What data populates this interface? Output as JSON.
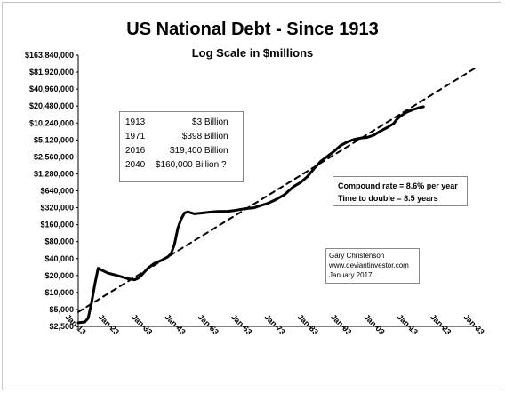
{
  "chart_data": {
    "type": "line",
    "title": "US National Debt - Since 1913",
    "subtitle": "Log Scale in $millions",
    "y_scale": "log2",
    "ylim": [
      2500,
      163840000
    ],
    "y_ticks": [
      "$163,840,000",
      "$81,920,000",
      "$40,960,000",
      "$20,480,000",
      "$10,240,000",
      "$5,120,000",
      "$2,560,000",
      "$1,280,000",
      "$640,000",
      "$320,000",
      "$160,000",
      "$80,000",
      "$40,000",
      "$20,000",
      "$10,000",
      "$5,000",
      "$2,500"
    ],
    "x_ticks": [
      "Jan-13",
      "Jan-23",
      "Jan-33",
      "Jan-43",
      "Jan-53",
      "Jan-63",
      "Jan-73",
      "Jan-83",
      "Jan-93",
      "Jan-03",
      "Jan-13",
      "Jan-23",
      "Jan-33"
    ],
    "xlim": [
      1913,
      2033
    ],
    "series": [
      {
        "style": "solid",
        "x": [
          1913,
          1915,
          1916,
          1917,
          1918,
          1919,
          1920,
          1922,
          1924,
          1926,
          1928,
          1930,
          1931,
          1932,
          1934,
          1936,
          1938,
          1940,
          1941,
          1942,
          1943,
          1944,
          1945,
          1946,
          1948,
          1950,
          1953,
          1955,
          1958,
          1960,
          1963,
          1966,
          1968,
          1970,
          1972,
          1975,
          1978,
          1980,
          1982,
          1984,
          1986,
          1988,
          1990,
          1992,
          1994,
          1996,
          1998,
          2000,
          2002,
          2004,
          2006,
          2008,
          2009,
          2010,
          2012,
          2014,
          2016,
          2017
        ],
        "values": [
          2900,
          3000,
          3500,
          6500,
          14000,
          27000,
          25000,
          22000,
          20500,
          19000,
          17500,
          16800,
          17800,
          20000,
          27000,
          33000,
          37000,
          43000,
          49000,
          72000,
          137000,
          200000,
          258000,
          270000,
          250000,
          257000,
          268000,
          275000,
          276000,
          286000,
          306000,
          320000,
          350000,
          380000,
          430000,
          540000,
          770000,
          900000,
          1140000,
          1570000,
          2120000,
          2600000,
          3200000,
          4060000,
          4690000,
          5200000,
          5500000,
          5670000,
          6200000,
          7350000,
          8450000,
          9990000,
          11900000,
          13500000,
          16000000,
          17800000,
          19400000,
          19900000
        ]
      },
      {
        "style": "dashed",
        "x": [
          1913,
          2033
        ],
        "values": [
          4500,
          100000000
        ]
      }
    ]
  },
  "table": {
    "rows": [
      {
        "year": "1913",
        "value": "$3 Billion"
      },
      {
        "year": "1971",
        "value": "$398 Billion"
      },
      {
        "year": "2016",
        "value": "$19,400 Billion"
      },
      {
        "year": "2040",
        "value": "$160,000 Billion ?"
      }
    ]
  },
  "rate_box": {
    "line1": "Compound rate = 8.6% per year",
    "line2": "Time to double = 8.5 years"
  },
  "credit": {
    "line1": "Gary Christenson",
    "line2": "www.deviantinvestor.com",
    "line3": "January 2017"
  }
}
